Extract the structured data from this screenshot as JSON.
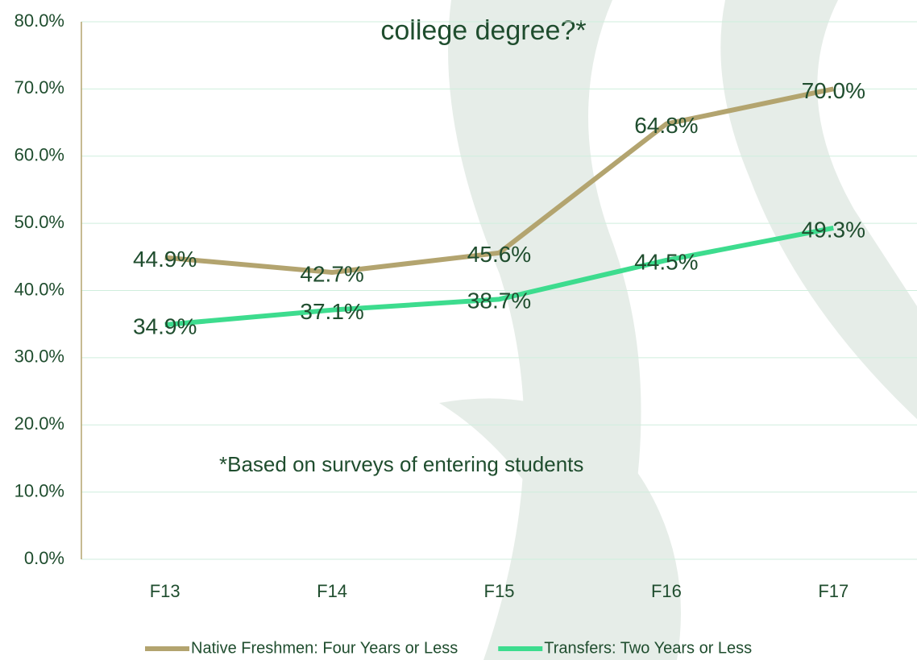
{
  "chart_data": {
    "type": "line",
    "title": "college degree?*",
    "annotation": "*Based on surveys of entering students",
    "categories": [
      "F13",
      "F14",
      "F15",
      "F16",
      "F17"
    ],
    "series": [
      {
        "name": "Native Freshmen: Four Years or Less",
        "color": "#b3a46f",
        "values": [
          44.9,
          42.7,
          45.6,
          64.8,
          70.0
        ],
        "value_labels": [
          "44.9%",
          "42.7%",
          "45.6%",
          "64.8%",
          "70.0%"
        ]
      },
      {
        "name": "Transfers: Two Years or Less",
        "color": "#3ddc8e",
        "values": [
          34.9,
          37.1,
          38.7,
          44.5,
          49.3
        ],
        "value_labels": [
          "34.9%",
          "37.1%",
          "38.7%",
          "44.5%",
          "49.3%"
        ]
      }
    ],
    "ylim": [
      0,
      80
    ],
    "yticks": [
      {
        "value": 0,
        "label": "0.0%"
      },
      {
        "value": 10,
        "label": "10.0%"
      },
      {
        "value": 20,
        "label": "20.0%"
      },
      {
        "value": 30,
        "label": "30.0%"
      },
      {
        "value": 40,
        "label": "40.0%"
      },
      {
        "value": 50,
        "label": "50.0%"
      },
      {
        "value": 60,
        "label": "60.0%"
      },
      {
        "value": 70,
        "label": "70.0%"
      },
      {
        "value": 80,
        "label": "80.0%"
      }
    ],
    "grid": true,
    "legend": "bottom"
  }
}
